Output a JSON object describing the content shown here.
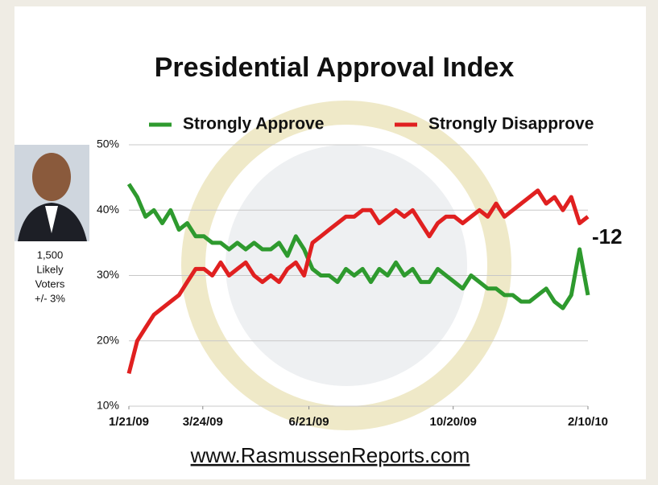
{
  "chart_data": {
    "type": "line",
    "title": "Presidential Approval Index",
    "annotation": "-12",
    "caption": [
      "1,500",
      "Likely",
      "Voters",
      "+/- 3%"
    ],
    "source": "www.RasmussenReports.com",
    "x": [
      "1/21/09",
      "1/28/09",
      "2/4/09",
      "2/11/09",
      "2/18/09",
      "2/25/09",
      "3/4/09",
      "3/11/09",
      "3/18/09",
      "3/25/09",
      "4/1/09",
      "4/8/09",
      "4/15/09",
      "4/22/09",
      "4/29/09",
      "5/6/09",
      "5/13/09",
      "5/20/09",
      "5/27/09",
      "6/3/09",
      "6/10/09",
      "6/17/09",
      "6/24/09",
      "7/1/09",
      "7/8/09",
      "7/15/09",
      "7/22/09",
      "7/29/09",
      "8/5/09",
      "8/12/09",
      "8/19/09",
      "8/26/09",
      "9/2/09",
      "9/9/09",
      "9/16/09",
      "9/23/09",
      "9/30/09",
      "10/7/09",
      "10/14/09",
      "10/21/09",
      "10/28/09",
      "11/4/09",
      "11/11/09",
      "11/18/09",
      "11/25/09",
      "12/2/09",
      "12/9/09",
      "12/16/09",
      "12/23/09",
      "12/30/09",
      "1/6/10",
      "1/13/10",
      "1/20/10",
      "1/27/10",
      "2/3/10",
      "2/10/10"
    ],
    "series": [
      {
        "name": "Strongly Approve",
        "color": "#2e9a2e",
        "values": [
          44,
          42,
          39,
          40,
          38,
          40,
          37,
          38,
          36,
          36,
          35,
          35,
          34,
          35,
          34,
          35,
          34,
          34,
          35,
          33,
          36,
          34,
          31,
          30,
          30,
          29,
          31,
          30,
          31,
          29,
          31,
          30,
          32,
          30,
          31,
          29,
          29,
          31,
          30,
          29,
          28,
          30,
          29,
          28,
          28,
          27,
          27,
          26,
          26,
          27,
          28,
          26,
          25,
          27,
          34,
          27
        ]
      },
      {
        "name": "Strongly Disapprove",
        "color": "#e02020",
        "values": [
          15,
          20,
          22,
          24,
          25,
          26,
          27,
          29,
          31,
          31,
          30,
          32,
          30,
          31,
          32,
          30,
          29,
          30,
          29,
          31,
          32,
          30,
          35,
          36,
          37,
          38,
          39,
          39,
          40,
          40,
          38,
          39,
          40,
          39,
          40,
          38,
          36,
          38,
          39,
          39,
          38,
          39,
          40,
          39,
          41,
          39,
          40,
          41,
          42,
          43,
          41,
          42,
          40,
          42,
          38,
          39
        ]
      }
    ],
    "xlim": [
      "1/21/09",
      "2/10/10"
    ],
    "xticks": [
      "1/21/09",
      "3/24/09",
      "6/21/09",
      "10/20/09",
      "2/10/10"
    ],
    "ylim": [
      10,
      50
    ],
    "yticks": [
      {
        "value": 10,
        "label": "10%"
      },
      {
        "value": 20,
        "label": "20%"
      },
      {
        "value": 30,
        "label": "30%"
      },
      {
        "value": 40,
        "label": "40%"
      },
      {
        "value": 50,
        "label": "50%"
      }
    ],
    "grid": true
  }
}
